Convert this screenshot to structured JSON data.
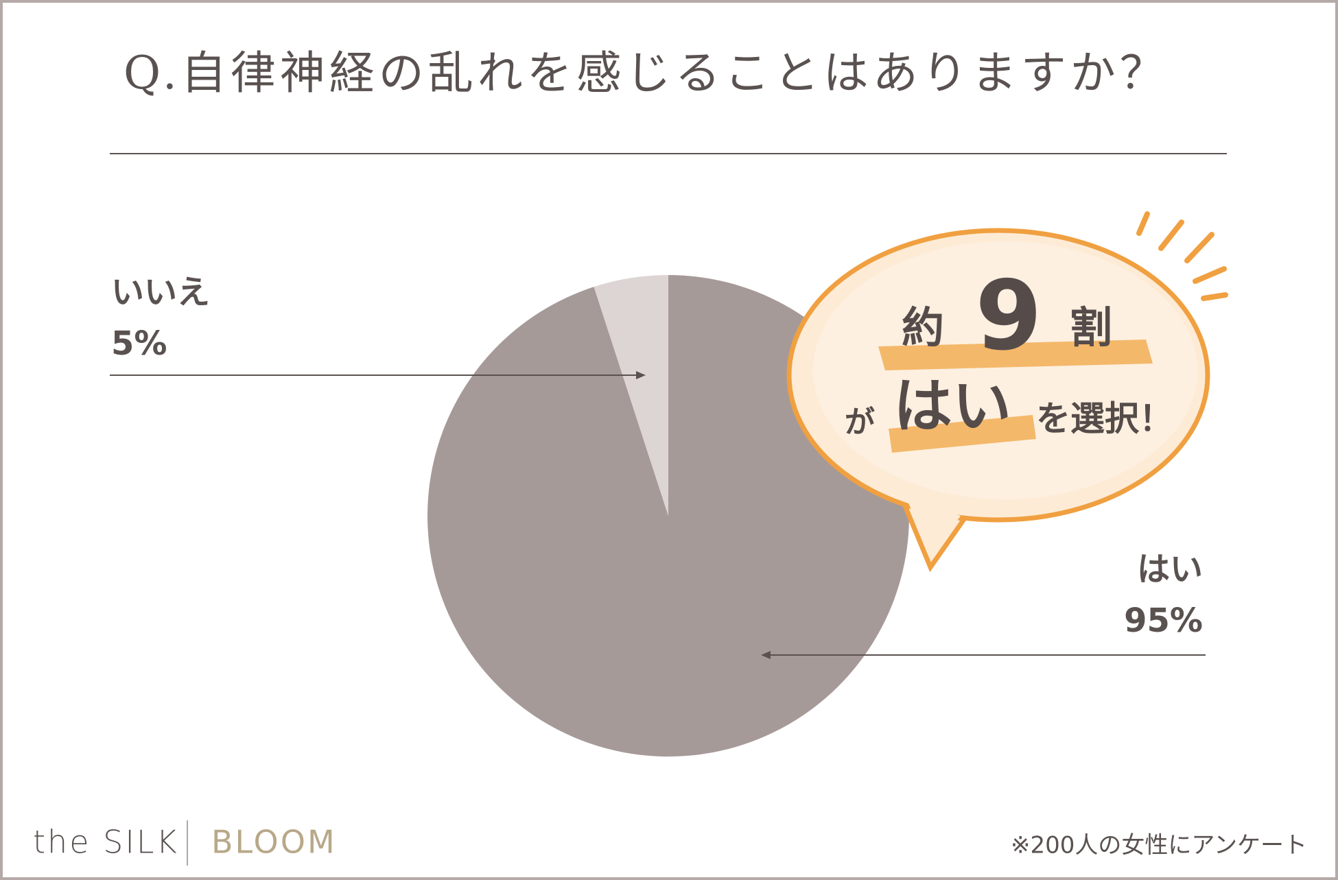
{
  "chart_data": {
    "type": "pie",
    "title": "Q.自律神経の乱れを感じることはありますか？",
    "categories": [
      "はい",
      "いいえ"
    ],
    "values": [
      95,
      5
    ],
    "value_labels": [
      "95%",
      "5%"
    ],
    "colors": [
      "#a69a99",
      "#ddd5d4"
    ],
    "callout": [
      "約",
      "9",
      "割",
      "が",
      "はい",
      "を選択！"
    ],
    "note": "※200人の女性にアンケート",
    "brand": [
      "the SILK",
      "BLOOM"
    ]
  }
}
